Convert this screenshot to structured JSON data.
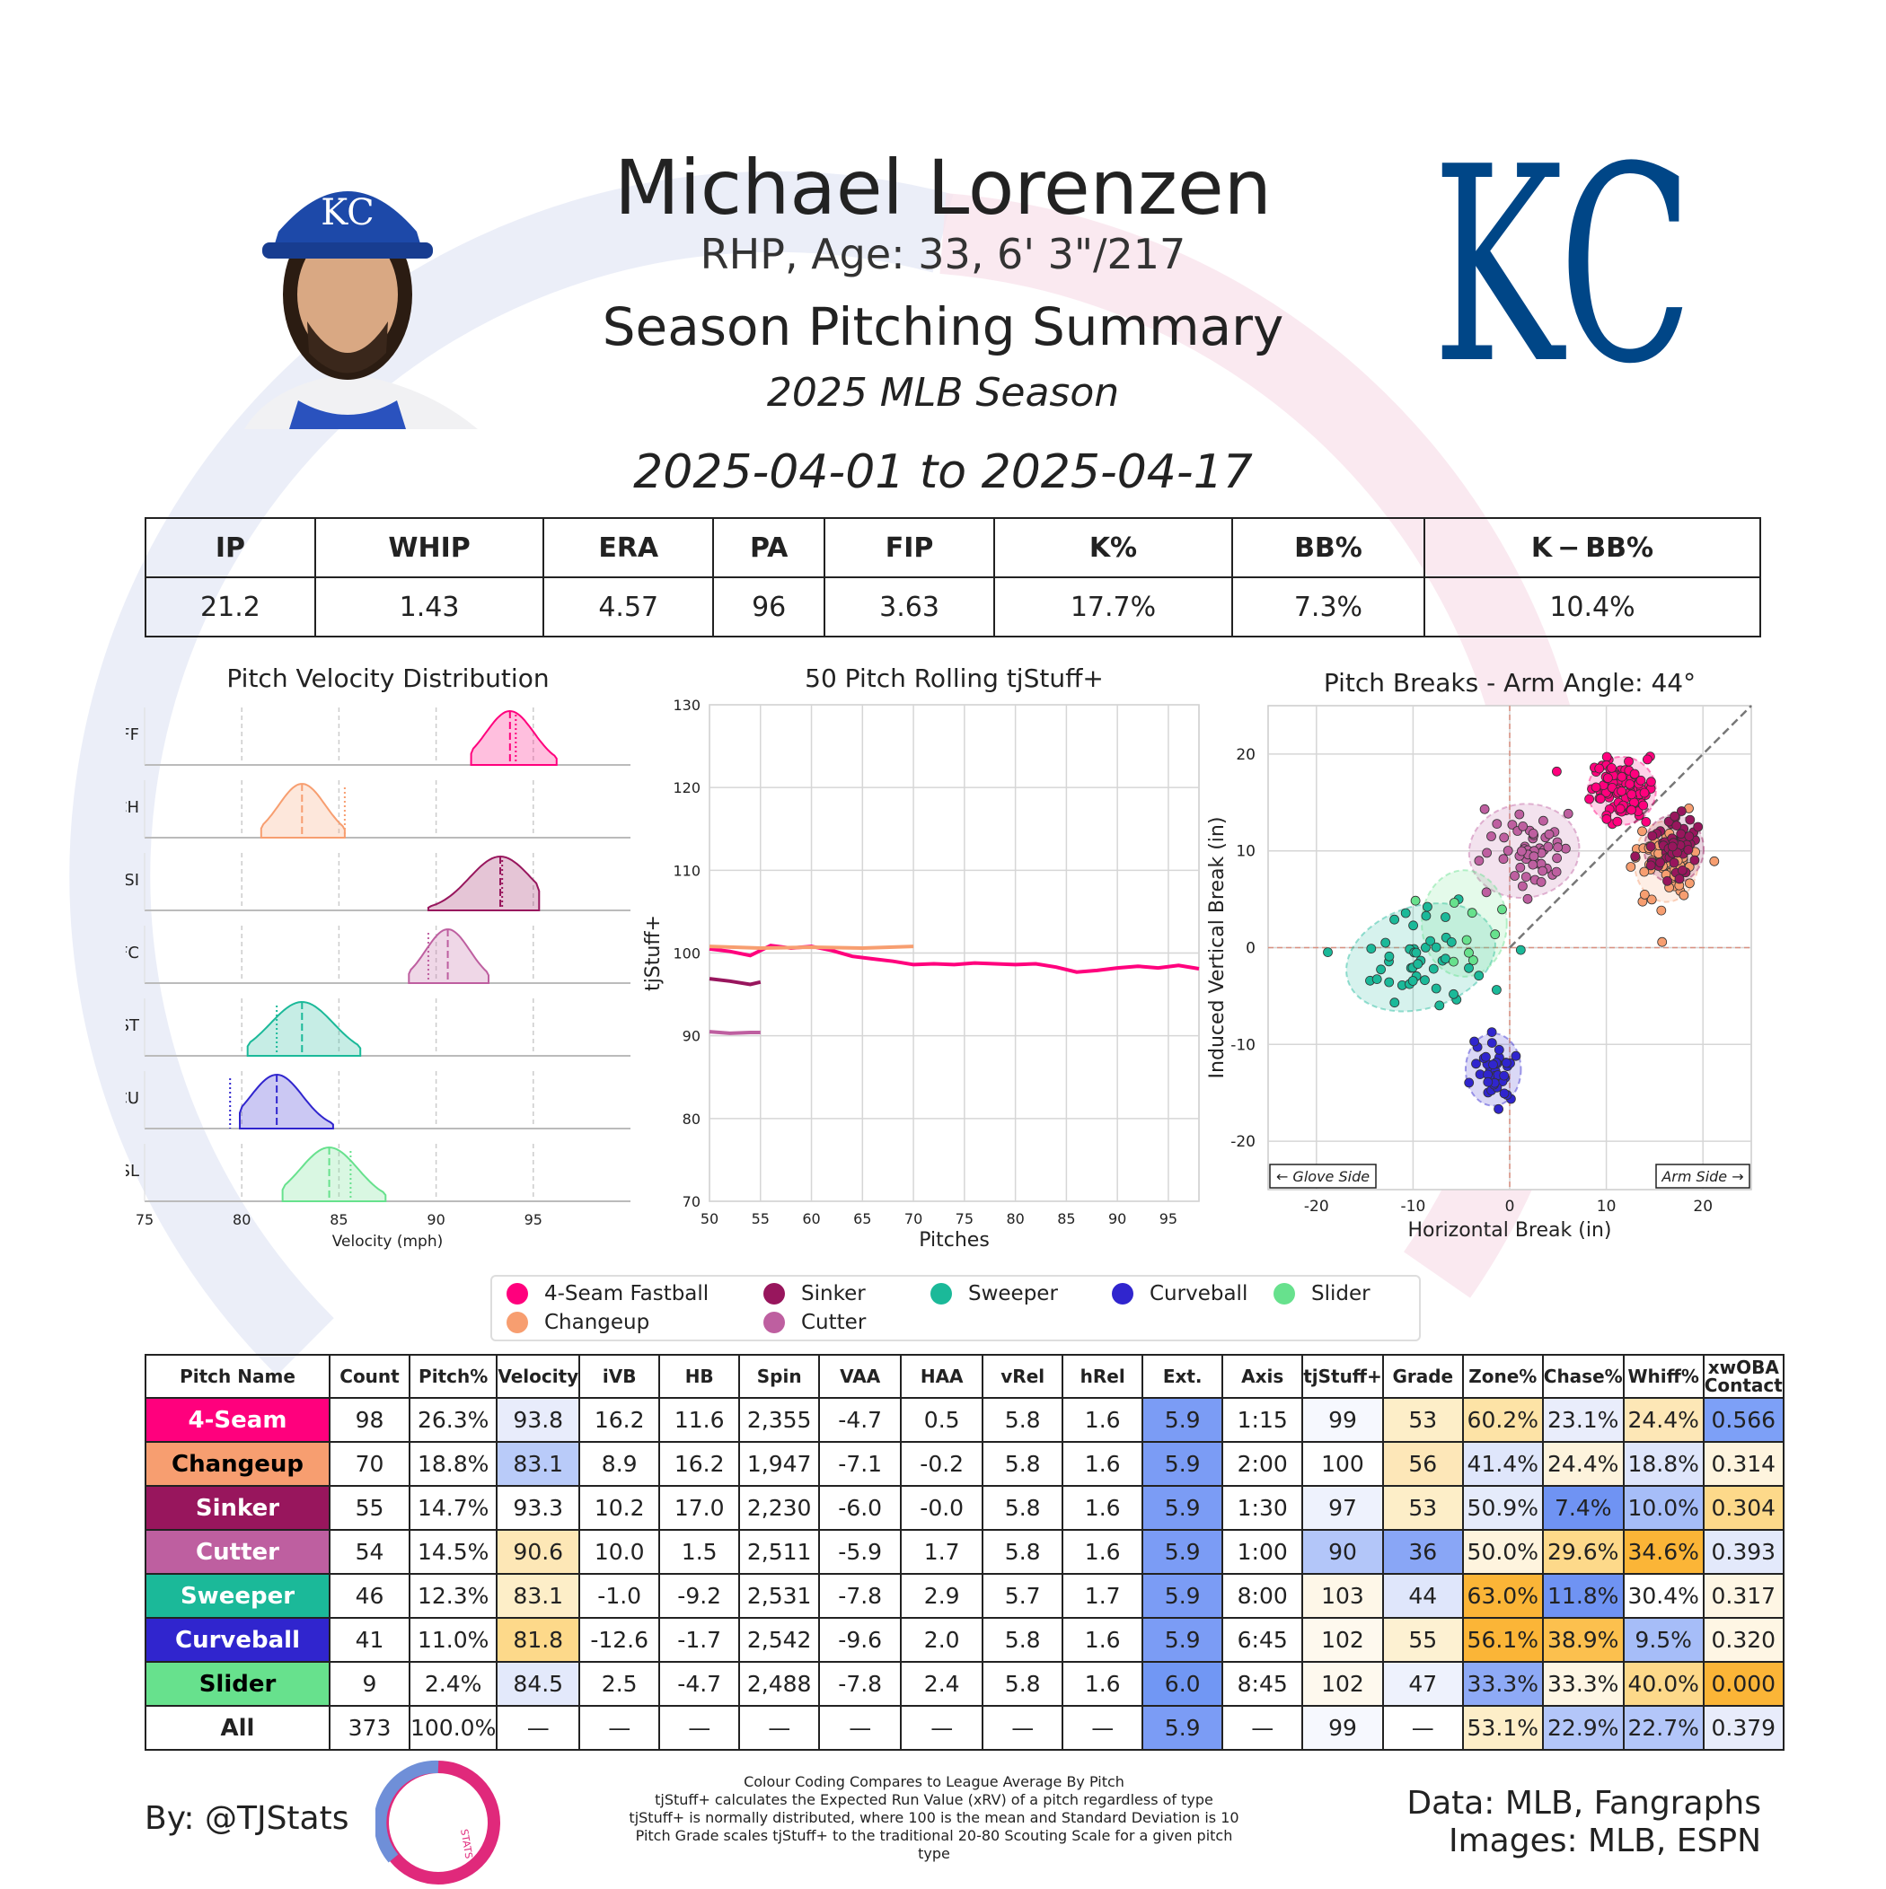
{
  "header": {
    "player_name": "Michael Lorenzen",
    "player_info": "RHP, Age: 33, 6' 3\"/217",
    "summary_title": "Season Pitching Summary",
    "season_label": "2025 MLB Season",
    "date_range": "2025-04-01 to 2025-04-17",
    "team_logo_text": "KC",
    "cap_logo_text": "KC"
  },
  "season_stats": {
    "headers": [
      "IP",
      "WHIP",
      "ERA",
      "PA",
      "FIP",
      "K%",
      "BB%",
      "K − BB%"
    ],
    "values": [
      "21.2",
      "1.43",
      "4.57",
      "96",
      "3.63",
      "17.7%",
      "7.3%",
      "10.4%"
    ]
  },
  "colors": {
    "FF": "#FF007D",
    "CH": "#F79E70",
    "SI": "#98165D",
    "FC": "#BE5FA0",
    "ST": "#1BB999",
    "CU": "#3025CE",
    "SL": "#67E18D"
  },
  "legend": [
    "4-Seam Fastball",
    "Sinker",
    "Sweeper",
    "Curveball",
    "Slider",
    "Changeup",
    "Cutter"
  ],
  "chart_data": [
    {
      "type": "area",
      "title": "Pitch Velocity Distribution",
      "xlabel": "Velocity (mph)",
      "ylabel": "",
      "xlim": [
        75,
        100
      ],
      "xticks": [
        75,
        80,
        85,
        90,
        95
      ],
      "series": [
        {
          "name": "FF",
          "range": [
            91.8,
            96.2
          ],
          "mean": 93.8,
          "league": 94.1
        },
        {
          "name": "CH",
          "range": [
            81.0,
            85.3
          ],
          "mean": 83.1,
          "league": 85.3
        },
        {
          "name": "SI",
          "range": [
            89.6,
            95.3
          ],
          "mean": 93.3,
          "league": 93.4
        },
        {
          "name": "FC",
          "range": [
            88.6,
            92.7
          ],
          "mean": 90.6,
          "league": 89.6
        },
        {
          "name": "ST",
          "range": [
            80.3,
            86.1
          ],
          "mean": 83.1,
          "league": 81.8
        },
        {
          "name": "CU",
          "range": [
            79.9,
            84.7
          ],
          "mean": 81.8,
          "league": 79.4
        },
        {
          "name": "SL",
          "range": [
            82.1,
            87.4
          ],
          "mean": 84.5,
          "league": 85.6
        }
      ]
    },
    {
      "type": "line",
      "title": "50 Pitch Rolling tjStuff+",
      "xlabel": "Pitches",
      "ylabel": "tjStuff+",
      "xlim": [
        50,
        98
      ],
      "ylim": [
        70,
        130
      ],
      "xticks": [
        50,
        55,
        60,
        65,
        70,
        75,
        80,
        85,
        90,
        95
      ],
      "yticks": [
        70,
        80,
        90,
        100,
        110,
        120,
        130
      ],
      "series": [
        {
          "name": "4-Seam Fastball",
          "x": [
            50,
            52,
            54,
            56,
            58,
            60,
            62,
            64,
            66,
            68,
            70,
            72,
            74,
            76,
            78,
            80,
            82,
            84,
            86,
            88,
            90,
            92,
            94,
            96,
            98
          ],
          "y": [
            100.5,
            100.2,
            99.7,
            100.9,
            100.6,
            100.8,
            100.3,
            99.6,
            99.3,
            99.0,
            98.6,
            98.7,
            98.6,
            98.8,
            98.7,
            98.6,
            98.7,
            98.3,
            97.7,
            97.9,
            98.2,
            98.4,
            98.2,
            98.5,
            98.1
          ]
        },
        {
          "name": "Changeup",
          "x": [
            50,
            55,
            60,
            65,
            70
          ],
          "y": [
            100.8,
            100.6,
            100.7,
            100.6,
            100.8
          ]
        },
        {
          "name": "Sinker",
          "x": [
            50,
            52,
            54,
            55
          ],
          "y": [
            96.9,
            96.6,
            96.2,
            96.5
          ]
        },
        {
          "name": "Cutter",
          "x": [
            50,
            52,
            54,
            55
          ],
          "y": [
            90.5,
            90.3,
            90.4,
            90.4
          ]
        }
      ]
    },
    {
      "type": "scatter",
      "title": "Pitch Breaks - Arm Angle: 44°",
      "xlabel": "Horizontal Break (in)",
      "ylabel": "Induced Vertical Break (in)",
      "xlim": [
        -25,
        25
      ],
      "ylim": [
        -25,
        25
      ],
      "xticks": [
        -20,
        -10,
        0,
        10,
        20
      ],
      "yticks": [
        -20,
        -10,
        0,
        10,
        20
      ],
      "annotations": {
        "glove_side": "← Glove Side",
        "arm_side": "Arm Side →"
      },
      "clusters": [
        {
          "name": "FF",
          "n": 98,
          "hb": 11.6,
          "ivb": 16.2,
          "sx": 1.6,
          "sy": 1.6
        },
        {
          "name": "CH",
          "n": 70,
          "hb": 16.2,
          "ivb": 8.9,
          "sx": 1.5,
          "sy": 1.9
        },
        {
          "name": "SI",
          "n": 55,
          "hb": 17.0,
          "ivb": 10.2,
          "sx": 1.4,
          "sy": 1.6
        },
        {
          "name": "FC",
          "n": 54,
          "hb": 1.5,
          "ivb": 10.0,
          "sx": 2.6,
          "sy": 2.2
        },
        {
          "name": "ST",
          "n": 46,
          "hb": -9.2,
          "ivb": -1.0,
          "sx": 3.6,
          "sy": 2.4
        },
        {
          "name": "CU",
          "n": 41,
          "hb": -1.7,
          "ivb": -12.6,
          "sx": 1.3,
          "sy": 1.7
        },
        {
          "name": "SL",
          "n": 9,
          "hb": -4.7,
          "ivb": 2.5,
          "sx": 2.0,
          "sy": 2.5
        }
      ]
    },
    {
      "type": "table",
      "columns": [
        "Pitch Name",
        "Count",
        "Pitch%",
        "Velocity",
        "iVB",
        "HB",
        "Spin",
        "VAA",
        "HAA",
        "vRel",
        "hRel",
        "Ext.",
        "Axis",
        "tjStuff+",
        "Grade",
        "Zone%",
        "Chase%",
        "Whiff%",
        "xwOBA\nContact"
      ],
      "rows": [
        {
          "key": "FF",
          "cells": [
            "4-Seam",
            "98",
            "26.3%",
            "93.8",
            "16.2",
            "11.6",
            "2,355",
            "-4.7",
            "0.5",
            "5.8",
            "1.6",
            "5.9",
            "1:15",
            "99",
            "53",
            "60.2%",
            "23.1%",
            "24.4%",
            "0.566"
          ]
        },
        {
          "key": "CH",
          "cells": [
            "Changeup",
            "70",
            "18.8%",
            "83.1",
            "8.9",
            "16.2",
            "1,947",
            "-7.1",
            "-0.2",
            "5.8",
            "1.6",
            "5.9",
            "2:00",
            "100",
            "56",
            "41.4%",
            "24.4%",
            "18.8%",
            "0.314"
          ]
        },
        {
          "key": "SI",
          "cells": [
            "Sinker",
            "55",
            "14.7%",
            "93.3",
            "10.2",
            "17.0",
            "2,230",
            "-6.0",
            "-0.0",
            "5.8",
            "1.6",
            "5.9",
            "1:30",
            "97",
            "53",
            "50.9%",
            "7.4%",
            "10.0%",
            "0.304"
          ]
        },
        {
          "key": "FC",
          "cells": [
            "Cutter",
            "54",
            "14.5%",
            "90.6",
            "10.0",
            "1.5",
            "2,511",
            "-5.9",
            "1.7",
            "5.8",
            "1.6",
            "5.9",
            "1:00",
            "90",
            "36",
            "50.0%",
            "29.6%",
            "34.6%",
            "0.393"
          ]
        },
        {
          "key": "ST",
          "cells": [
            "Sweeper",
            "46",
            "12.3%",
            "83.1",
            "-1.0",
            "-9.2",
            "2,531",
            "-7.8",
            "2.9",
            "5.7",
            "1.7",
            "5.9",
            "8:00",
            "103",
            "44",
            "63.0%",
            "11.8%",
            "30.4%",
            "0.317"
          ]
        },
        {
          "key": "CU",
          "cells": [
            "Curveball",
            "41",
            "11.0%",
            "81.8",
            "-12.6",
            "-1.7",
            "2,542",
            "-9.6",
            "2.0",
            "5.8",
            "1.6",
            "5.9",
            "6:45",
            "102",
            "55",
            "56.1%",
            "38.9%",
            "9.5%",
            "0.320"
          ]
        },
        {
          "key": "SL",
          "cells": [
            "Slider",
            "9",
            "2.4%",
            "84.5",
            "2.5",
            "-4.7",
            "2,488",
            "-7.8",
            "2.4",
            "5.8",
            "1.6",
            "6.0",
            "8:45",
            "102",
            "47",
            "33.3%",
            "33.3%",
            "40.0%",
            "0.000"
          ]
        },
        {
          "key": "ALL",
          "cells": [
            "All",
            "373",
            "100.0%",
            "—",
            "—",
            "—",
            "—",
            "—",
            "—",
            "—",
            "—",
            "5.9",
            "—",
            "99",
            "—",
            "53.1%",
            "22.9%",
            "22.7%",
            "0.379"
          ]
        }
      ],
      "cell_colors": {
        "FF": {
          "3": "#e8ecfb",
          "11": "#7b9cf5",
          "13": "#f6f8fe",
          "14": "#fdeec8",
          "15": "#fde3a6",
          "16": "#e9edfb",
          "17": "#fde7b6",
          "18": "#7da0f7"
        },
        "CH": {
          "3": "#b9cbf9",
          "11": "#7b9cf5",
          "13": "#ffffff",
          "14": "#fde7b8",
          "15": "#dfe6fb",
          "16": "#fdf3dc",
          "17": "#dfe6fb",
          "18": "#fef4de"
        },
        "SI": {
          "3": "#ffffff",
          "11": "#7b9cf5",
          "13": "#eef2fd",
          "14": "#fdeec8",
          "15": "#e5ebfb",
          "16": "#6f93f3",
          "17": "#a6bdf8",
          "18": "#fdd98a"
        },
        "FC": {
          "3": "#fde7b6",
          "11": "#7b9cf5",
          "13": "#b3c6f9",
          "14": "#89a6f6",
          "15": "#fef4de",
          "16": "#fdd98a",
          "17": "#fbb537",
          "18": "#e3e9fb"
        },
        "ST": {
          "3": "#fdeec8",
          "11": "#7b9cf5",
          "13": "#fef7e8",
          "14": "#dfe6fb",
          "15": "#fbb537",
          "16": "#6f93f3",
          "17": "#ffffff",
          "18": "#fef6e4"
        },
        "CU": {
          "3": "#fdd98a",
          "11": "#7b9cf5",
          "13": "#fef9ee",
          "14": "#fdf1d2",
          "15": "#fbb537",
          "16": "#fcc04e",
          "17": "#a6bdf8",
          "18": "#fef6e4"
        },
        "SL": {
          "3": "#e3e9fb",
          "11": "#7197f4",
          "13": "#fef9ee",
          "14": "#eef2fd",
          "15": "#8eaaf6",
          "16": "#fef6e4",
          "17": "#fdd98a",
          "18": "#fbb537"
        },
        "ALL": {
          "11": "#7b9cf5",
          "13": "#f6f8fe",
          "15": "#fdeec8",
          "16": "#b3c6f9",
          "17": "#b3c6f9",
          "18": "#e8ecfb"
        }
      }
    }
  ],
  "footer": {
    "by": "By: @TJStats",
    "notes": [
      "Colour Coding Compares to League Average By Pitch",
      "tjStuff+ calculates the Expected Run Value (xRV) of a pitch regardless of type",
      "tjStuff+ is normally distributed, where 100 is the mean and Standard Deviation is 10",
      "Pitch Grade scales tjStuff+ to the traditional 20-80 Scouting Scale for a given pitch type"
    ],
    "data_credit": "Data: MLB, Fangraphs",
    "image_credit": "Images: MLB, ESPN",
    "logo_text": "STATS"
  }
}
